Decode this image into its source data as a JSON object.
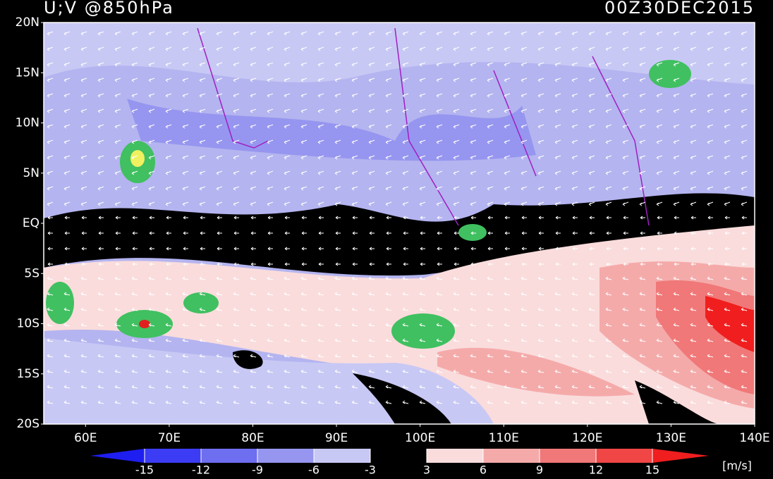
{
  "header": {
    "title": "U;V @850hPa",
    "time": "00Z30DEC2015"
  },
  "map": {
    "lonlim": [
      55,
      140
    ],
    "latlim": [
      -20,
      20
    ],
    "lat_ticks": [
      {
        "value": 20,
        "label": "20N"
      },
      {
        "value": 15,
        "label": "15N"
      },
      {
        "value": 10,
        "label": "10N"
      },
      {
        "value": 5,
        "label": "5N"
      },
      {
        "value": 0,
        "label": "EQ"
      },
      {
        "value": -5,
        "label": "5S"
      },
      {
        "value": -10,
        "label": "10S"
      },
      {
        "value": -15,
        "label": "15S"
      },
      {
        "value": -20,
        "label": "20S"
      }
    ],
    "lon_ticks": [
      {
        "value": 60,
        "label": "60E"
      },
      {
        "value": 70,
        "label": "70E"
      },
      {
        "value": 80,
        "label": "80E"
      },
      {
        "value": 90,
        "label": "90E"
      },
      {
        "value": 100,
        "label": "100E"
      },
      {
        "value": 110,
        "label": "110E"
      },
      {
        "value": 120,
        "label": "120E"
      },
      {
        "value": 130,
        "label": "130E"
      },
      {
        "value": 140,
        "label": "140E"
      }
    ]
  },
  "colorbar": {
    "ticks": [
      -15,
      -12,
      -9,
      -6,
      -3,
      3,
      6,
      9,
      12,
      15
    ],
    "colors": [
      "#1e1ef0",
      "#3c3cf5",
      "#6e6ef0",
      "#9696f0",
      "#c8c8f5",
      "#000000",
      "#fadcdc",
      "#f5aaaa",
      "#f07878",
      "#f04646",
      "#f01e1e"
    ],
    "unit": "[m/s]"
  }
}
